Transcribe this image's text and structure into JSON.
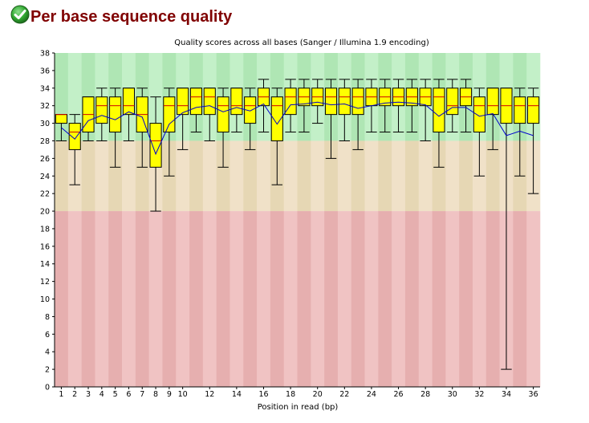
{
  "page": {
    "title": "Per base sequence quality",
    "status_icon": "pass-check-icon"
  },
  "colors": {
    "good_dark": "#afe6b4",
    "good_light": "#c3f0c8",
    "warn_dark": "#e6d7b4",
    "warn_light": "#f0e1c8",
    "bad_dark": "#e6afaf",
    "bad_light": "#f0c3c3",
    "box_fill": "#ffff00",
    "box_stroke": "#000000",
    "median_line": "#cc0000",
    "mean_line": "#0000cc",
    "title_color": "#800000",
    "icon_green": "#33aa33"
  },
  "chart_data": {
    "type": "boxplot",
    "title": "Quality scores across all bases (Sanger / Illumina 1.9 encoding)",
    "xlabel": "Position in read (bp)",
    "ylabel": "",
    "ylim": [
      0,
      38
    ],
    "yticks": [
      0,
      2,
      4,
      6,
      8,
      10,
      12,
      14,
      16,
      18,
      20,
      22,
      24,
      26,
      28,
      30,
      32,
      34,
      36,
      38
    ],
    "x_tick_labels": [
      "1",
      "2",
      "3",
      "4",
      "5",
      "6",
      "7",
      "8",
      "9",
      "10",
      "12",
      "14",
      "16",
      "18",
      "20",
      "22",
      "24",
      "26",
      "28",
      "30",
      "32",
      "34",
      "36"
    ],
    "x_tick_positions": [
      1,
      2,
      3,
      4,
      5,
      6,
      7,
      8,
      9,
      10,
      12,
      14,
      16,
      18,
      20,
      22,
      24,
      26,
      28,
      30,
      32,
      34,
      36
    ],
    "zones": [
      {
        "name": "good",
        "from": 28,
        "to": 38
      },
      {
        "name": "warning",
        "from": 20,
        "to": 28
      },
      {
        "name": "bad",
        "from": 0,
        "to": 20
      }
    ],
    "positions": [
      1,
      2,
      3,
      4,
      5,
      6,
      7,
      8,
      9,
      10,
      11,
      12,
      13,
      14,
      15,
      16,
      17,
      18,
      19,
      20,
      21,
      22,
      23,
      24,
      25,
      26,
      27,
      28,
      29,
      30,
      31,
      32,
      33,
      34,
      35,
      36
    ],
    "box_series": {
      "lower_whisker": [
        28,
        23,
        28,
        28,
        25,
        28,
        25,
        20,
        24,
        27,
        29,
        28,
        25,
        29,
        27,
        29,
        23,
        29,
        29,
        30,
        26,
        28,
        27,
        29,
        29,
        29,
        29,
        28,
        25,
        29,
        29,
        24,
        27,
        2,
        24,
        22
      ],
      "q1": [
        30,
        27,
        29,
        30,
        29,
        31,
        29,
        25,
        29,
        31,
        31,
        31,
        29,
        31,
        30,
        32,
        28,
        31,
        32,
        32,
        31,
        31,
        31,
        32,
        32,
        32,
        32,
        32,
        29,
        31,
        32,
        29,
        31,
        30,
        30,
        30
      ],
      "median": [
        31,
        29,
        31,
        32,
        32,
        32,
        31,
        28,
        32,
        32,
        33,
        33,
        32,
        32,
        32,
        33,
        32,
        33,
        33,
        33,
        33,
        33,
        33,
        33,
        33,
        33,
        33,
        33,
        33,
        32,
        33,
        32,
        32,
        32,
        32,
        32
      ],
      "q3": [
        31,
        30,
        33,
        33,
        33,
        34,
        33,
        30,
        33,
        34,
        34,
        34,
        33,
        34,
        33,
        34,
        33,
        34,
        34,
        34,
        34,
        34,
        34,
        34,
        34,
        34,
        34,
        34,
        34,
        34,
        34,
        33,
        34,
        34,
        33,
        33
      ],
      "upper_whisker": [
        31,
        31,
        33,
        34,
        34,
        34,
        34,
        33,
        34,
        34,
        34,
        34,
        34,
        34,
        34,
        35,
        34,
        35,
        35,
        35,
        35,
        35,
        35,
        35,
        35,
        35,
        35,
        35,
        35,
        35,
        35,
        34,
        34,
        34,
        34,
        34
      ],
      "mean": [
        29.5,
        28.2,
        30.3,
        30.9,
        30.4,
        31.3,
        30.7,
        26.5,
        29.9,
        31.2,
        31.8,
        32.0,
        31.3,
        31.8,
        31.4,
        32.2,
        29.9,
        32.1,
        32.2,
        32.4,
        32.1,
        32.2,
        31.7,
        32.0,
        32.3,
        32.4,
        32.3,
        32.1,
        30.8,
        31.8,
        31.8,
        30.8,
        31.1,
        28.6,
        29.1,
        28.6
      ]
    },
    "legend": "none",
    "grid": false
  }
}
